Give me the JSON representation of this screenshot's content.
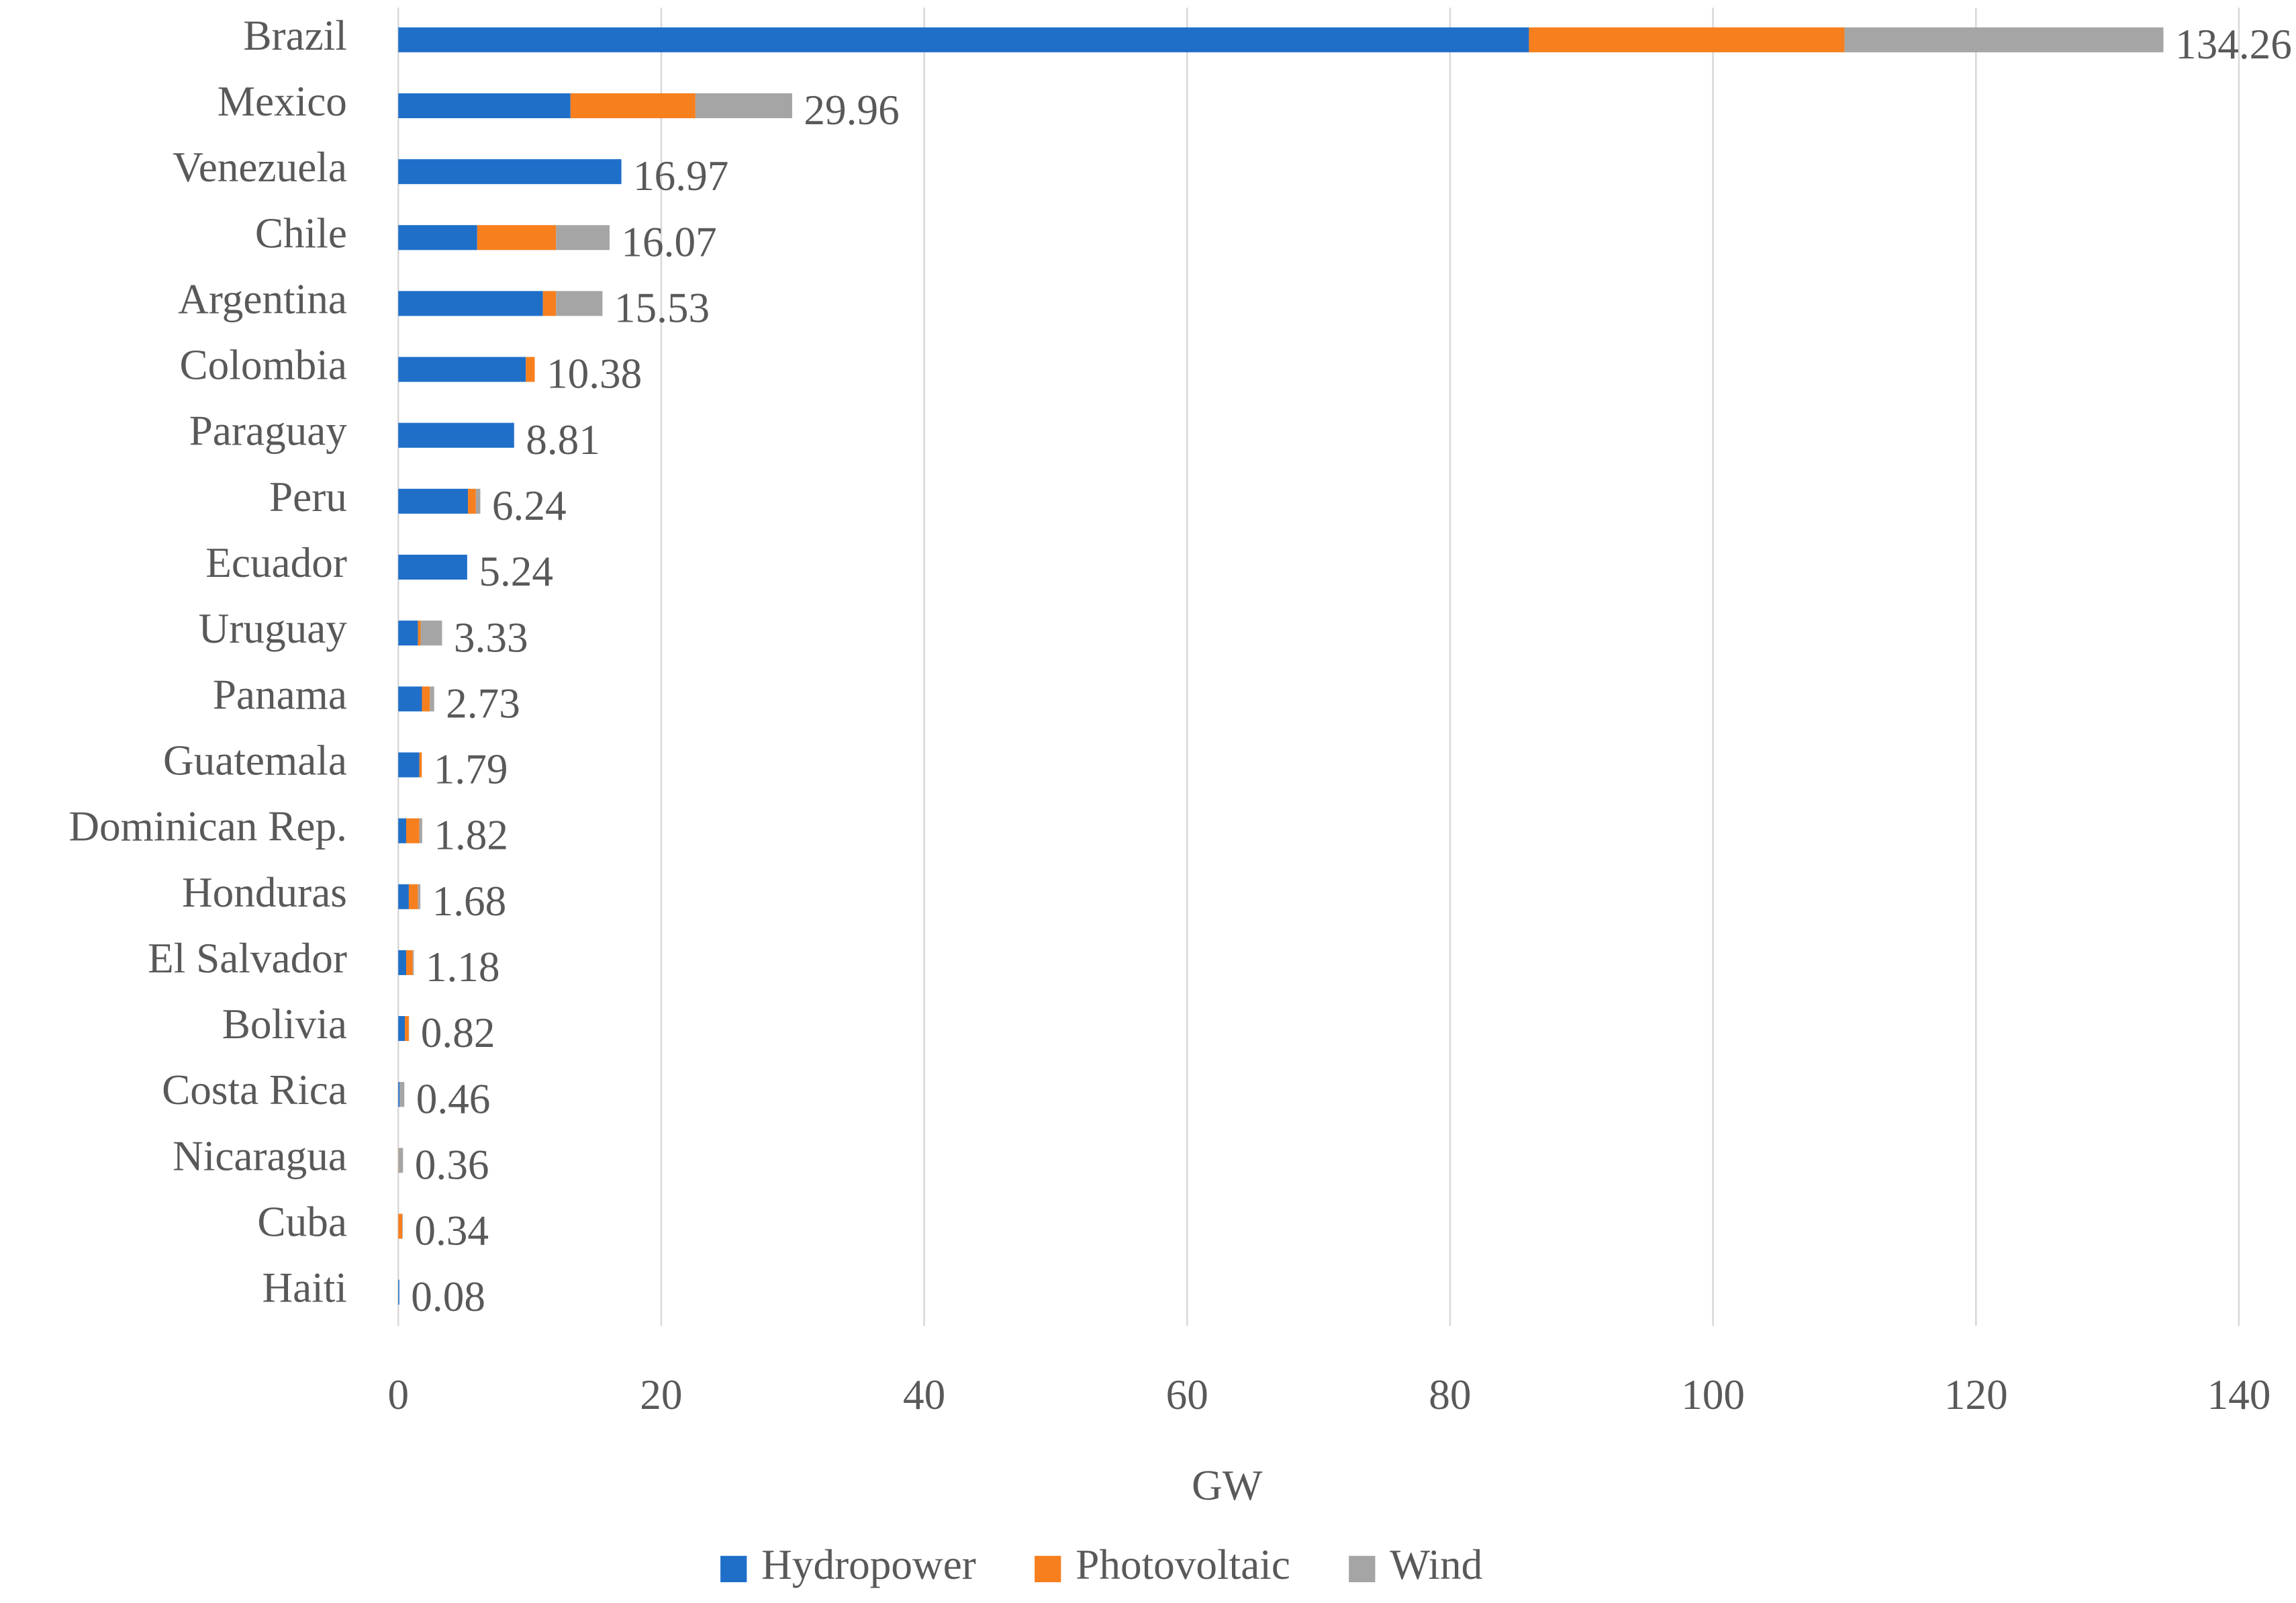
{
  "chart_data": {
    "type": "stacked-bar-horizontal",
    "x_label": "GW",
    "categories": [
      "Brazil",
      "Mexico",
      "Venezuela",
      "Chile",
      "Argentina",
      "Colombia",
      "Paraguay",
      "Peru",
      "Ecuador",
      "Uruguay",
      "Panama",
      "Guatemala",
      "Dominican Rep.",
      "Honduras",
      "El Salvador",
      "Bolivia",
      "Costa Rica",
      "Nicaragua",
      "Cuba",
      "Haiti"
    ],
    "series": [
      {
        "name": "Hydropower",
        "color": "#1f6fc9",
        "values": [
          86.0,
          13.1,
          16.97,
          6.0,
          11.0,
          9.7,
          8.81,
          5.3,
          5.24,
          1.5,
          1.8,
          1.6,
          0.6,
          0.8,
          0.6,
          0.5,
          0.1,
          0,
          0,
          0.08
        ]
      },
      {
        "name": "Photovoltaic",
        "color": "#f77f1e",
        "values": [
          24.0,
          9.5,
          0,
          6.0,
          1.0,
          0.68,
          0,
          0.6,
          0,
          0.2,
          0.6,
          0.19,
          1.0,
          0.7,
          0.5,
          0.3,
          0,
          0.02,
          0.3,
          0
        ]
      },
      {
        "name": "Wind",
        "color": "#a5a5a5",
        "values": [
          24.26,
          7.36,
          0,
          4.07,
          3.53,
          0,
          0,
          0.34,
          0,
          1.63,
          0.33,
          0,
          0.22,
          0.18,
          0.08,
          0.02,
          0.36,
          0.34,
          0.04,
          0
        ]
      }
    ],
    "totals": [
      134.26,
      29.96,
      16.97,
      16.07,
      15.53,
      10.38,
      8.81,
      6.24,
      5.24,
      3.33,
      2.73,
      1.79,
      1.82,
      1.68,
      1.18,
      0.82,
      0.46,
      0.36,
      0.34,
      0.08
    ],
    "xlim": [
      0,
      140
    ],
    "xticks": [
      0,
      20,
      40,
      60,
      80,
      100,
      120,
      140
    ],
    "grid": true,
    "legend": "bottom"
  }
}
